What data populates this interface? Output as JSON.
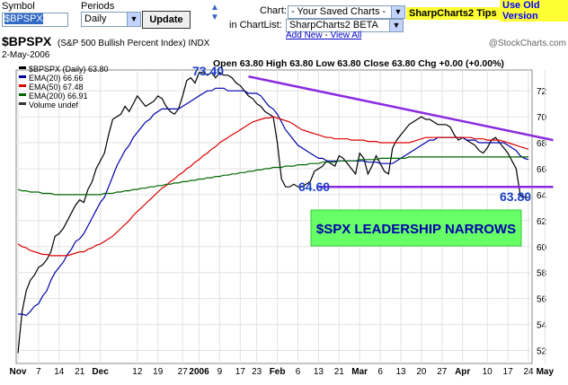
{
  "toolbar": {
    "symbol_label": "Symbol",
    "symbol_value": "$BPSPX",
    "periods_label": "Periods",
    "periods_value": "Daily",
    "update_label": "Update",
    "chart_label": "Chart:",
    "saved_charts_value": "- Your Saved Charts -",
    "chartlist_label": "in ChartList:",
    "chartlist_value": "SharpCharts2 BETA",
    "add_new_link": "Add New",
    "view_all_link": "View All",
    "link_sep": "-",
    "tips_label": "SharpCharts2 Tips",
    "old_version_link": "Use Old Version"
  },
  "chart_header": {
    "title_symbol": "$BPSPX",
    "title_desc": "(S&P 500 Bullish Percent Index) INDX",
    "watermark": "@StockCharts.com",
    "date": "2-May-2006",
    "ohlc": "Open 63.80   High 63.80   Low 63.80   Close 63.80   Chg +0.00 (+0.00%)",
    "legend": [
      {
        "text": "$BPSPX (Daily) 63.80",
        "color": "#000000"
      },
      {
        "text": "EMA(20) 66.66",
        "color": "#0000aa"
      },
      {
        "text": "EMA(50) 67.48",
        "color": "#dd0000"
      },
      {
        "text": "EMA(200) 66.91",
        "color": "#006600"
      },
      {
        "text": "Volume undef",
        "color": "#333333"
      }
    ]
  },
  "annotations": {
    "peak": "73.40",
    "low": "64.60",
    "last": "63.80",
    "leadership": "$SPX LEADERSHIP NARROWS"
  },
  "chart_data": {
    "type": "line",
    "title": "$BPSPX",
    "y_ticks": [
      52,
      54,
      56,
      58,
      60,
      62,
      64,
      66,
      68,
      70,
      72
    ],
    "ylim": [
      51,
      73.6
    ],
    "x_tick_labels": [
      "Nov",
      "7",
      "14",
      "21",
      "Dec",
      "12",
      "19",
      "27",
      "2006",
      "9",
      "17",
      "23",
      "Feb",
      "6",
      "13",
      "21",
      "Mar",
      "6",
      "13",
      "20",
      "27",
      "Apr",
      "10",
      "17",
      "24",
      "May"
    ],
    "x_tick_index": [
      0,
      5,
      10,
      15,
      20,
      29,
      34,
      40,
      44,
      49,
      54,
      58,
      63,
      68,
      73,
      78,
      83,
      88,
      93,
      98,
      103,
      108,
      114,
      119,
      124,
      128
    ],
    "series": [
      {
        "name": "$BPSPX (Daily)",
        "color": "#000000",
        "values": [
          51.8,
          55.0,
          56.6,
          57.4,
          57.8,
          58.4,
          58.6,
          59.0,
          59.6,
          60.8,
          61.0,
          61.4,
          62.0,
          62.6,
          63.2,
          63.6,
          63.4,
          64.4,
          65.0,
          66.0,
          66.6,
          67.2,
          68.6,
          69.8,
          70.0,
          70.2,
          70.8,
          70.4,
          71.0,
          71.6,
          71.2,
          70.8,
          71.0,
          71.2,
          71.6,
          71.4,
          70.8,
          70.4,
          70.2,
          70.6,
          71.6,
          72.8,
          73.0,
          72.6,
          73.4,
          73.4,
          73.2,
          73.4,
          73.0,
          73.4,
          73.2,
          73.2,
          73.0,
          72.6,
          72.4,
          72.0,
          71.6,
          71.4,
          71.0,
          70.8,
          70.4,
          70.2,
          70.0,
          68.0,
          65.2,
          64.6,
          64.6,
          64.8,
          64.6,
          64.6,
          64.8,
          65.0,
          65.8,
          66.0,
          66.2,
          66.6,
          66.4,
          66.2,
          67.0,
          66.8,
          66.4,
          66.0,
          65.6,
          67.2,
          66.8,
          65.6,
          66.2,
          67.0,
          66.4,
          65.8,
          65.6,
          67.6,
          68.2,
          68.6,
          69.0,
          69.4,
          69.6,
          69.8,
          70.0,
          69.8,
          69.8,
          69.6,
          69.4,
          69.4,
          69.4,
          69.2,
          68.6,
          68.2,
          68.4,
          68.2,
          68.0,
          67.8,
          67.4,
          67.2,
          67.6,
          68.2,
          68.4,
          68.0,
          67.6,
          67.2,
          66.6,
          66.0,
          64.0,
          63.8,
          63.8
        ]
      },
      {
        "name": "EMA(20)",
        "color": "#0000aa",
        "values": [
          54.8,
          54.8,
          54.7,
          55.0,
          55.4,
          55.6,
          56.2,
          56.6,
          57.4,
          58.0,
          58.4,
          58.8,
          59.4,
          59.8,
          60.4,
          60.6,
          61.0,
          61.6,
          62.2,
          62.8,
          63.4,
          63.8,
          64.6,
          65.4,
          66.2,
          66.8,
          67.4,
          67.8,
          68.4,
          68.8,
          69.2,
          69.6,
          69.8,
          70.2,
          70.4,
          70.6,
          70.6,
          70.6,
          70.6,
          70.6,
          70.8,
          71.0,
          71.2,
          71.4,
          71.6,
          71.8,
          72.0,
          72.0,
          72.2,
          72.2,
          72.2,
          72.0,
          72.0,
          72.0,
          72.0,
          72.0,
          71.8,
          71.8,
          71.8,
          71.6,
          71.2,
          70.8,
          70.6,
          70.2,
          69.6,
          69.0,
          68.6,
          68.2,
          67.8,
          67.6,
          67.4,
          67.2,
          67.0,
          66.8,
          66.8,
          66.6,
          66.6,
          66.6,
          66.6,
          66.6,
          66.6,
          66.6,
          66.6,
          66.6,
          66.6,
          66.5,
          66.5,
          66.5,
          66.4,
          66.4,
          66.4,
          66.4,
          66.6,
          66.8,
          67.0,
          67.2,
          67.4,
          67.6,
          67.8,
          68.0,
          68.2,
          68.2,
          68.4,
          68.4,
          68.4,
          68.4,
          68.4,
          68.4,
          68.4,
          68.2,
          68.2,
          68.2,
          68.0,
          68.0,
          68.0,
          68.0,
          68.0,
          68.0,
          68.0,
          67.8,
          67.6,
          67.4,
          67.0,
          66.8,
          66.7
        ]
      },
      {
        "name": "EMA(50)",
        "color": "#dd0000",
        "values": [
          60.2,
          60.0,
          59.9,
          59.7,
          59.6,
          59.5,
          59.4,
          59.4,
          59.3,
          59.3,
          59.3,
          59.3,
          59.3,
          59.4,
          59.5,
          59.6,
          59.6,
          59.8,
          59.9,
          60.1,
          60.2,
          60.4,
          60.6,
          60.8,
          61.1,
          61.4,
          61.7,
          62.0,
          62.4,
          62.7,
          63.0,
          63.3,
          63.6,
          63.9,
          64.2,
          64.5,
          64.7,
          65.0,
          65.2,
          65.5,
          65.7,
          66.0,
          66.2,
          66.5,
          66.7,
          67.0,
          67.2,
          67.5,
          67.7,
          68.0,
          68.2,
          68.4,
          68.6,
          68.8,
          69.0,
          69.2,
          69.4,
          69.6,
          69.7,
          69.8,
          69.9,
          69.9,
          70.0,
          69.9,
          69.8,
          69.7,
          69.6,
          69.4,
          69.2,
          69.0,
          68.9,
          68.8,
          68.7,
          68.6,
          68.5,
          68.4,
          68.4,
          68.3,
          68.3,
          68.3,
          68.3,
          68.2,
          68.2,
          68.2,
          68.2,
          68.1,
          68.1,
          68.1,
          68.0,
          68.0,
          68.0,
          68.0,
          68.0,
          68.0,
          68.0,
          68.0,
          68.1,
          68.2,
          68.3,
          68.4,
          68.4,
          68.4,
          68.4,
          68.4,
          68.4,
          68.4,
          68.4,
          68.4,
          68.4,
          68.4,
          68.4,
          68.3,
          68.3,
          68.3,
          68.2,
          68.2,
          68.2,
          68.2,
          68.1,
          68.0,
          67.9,
          67.8,
          67.7,
          67.6,
          67.5
        ]
      },
      {
        "name": "EMA(200)",
        "color": "#006600",
        "values": [
          64.4,
          64.3,
          64.3,
          64.2,
          64.2,
          64.2,
          64.1,
          64.1,
          64.1,
          64.0,
          64.0,
          64.0,
          64.0,
          64.0,
          64.0,
          64.0,
          64.0,
          64.0,
          64.0,
          64.0,
          64.0,
          64.1,
          64.1,
          64.1,
          64.2,
          64.2,
          64.3,
          64.3,
          64.4,
          64.4,
          64.5,
          64.5,
          64.6,
          64.6,
          64.7,
          64.7,
          64.8,
          64.8,
          64.9,
          64.9,
          65.0,
          65.0,
          65.1,
          65.1,
          65.2,
          65.2,
          65.3,
          65.3,
          65.4,
          65.4,
          65.5,
          65.5,
          65.6,
          65.6,
          65.7,
          65.7,
          65.8,
          65.8,
          65.9,
          65.9,
          66.0,
          66.0,
          66.1,
          66.1,
          66.1,
          66.2,
          66.2,
          66.2,
          66.3,
          66.3,
          66.3,
          66.4,
          66.4,
          66.4,
          66.5,
          66.5,
          66.5,
          66.5,
          66.6,
          66.6,
          66.6,
          66.6,
          66.6,
          66.7,
          66.7,
          66.7,
          66.7,
          66.7,
          66.8,
          66.8,
          66.8,
          66.8,
          66.8,
          66.8,
          66.8,
          66.9,
          66.9,
          66.9,
          66.9,
          66.9,
          66.9,
          66.9,
          66.9,
          66.9,
          66.9,
          66.9,
          66.9,
          66.9,
          66.9,
          66.9,
          66.9,
          66.9,
          66.9,
          66.9,
          66.9,
          66.9,
          66.9,
          66.9,
          66.9,
          66.9,
          66.9,
          66.9,
          66.9,
          66.9,
          66.9
        ]
      }
    ],
    "trendlines": [
      {
        "color": "#8a2be2",
        "points": [
          [
            56,
            73.1
          ],
          [
            130,
            68.2
          ]
        ]
      },
      {
        "color": "#8a2be2",
        "points": [
          [
            73,
            64.6
          ],
          [
            130,
            64.6
          ]
        ]
      }
    ],
    "grid": true
  }
}
